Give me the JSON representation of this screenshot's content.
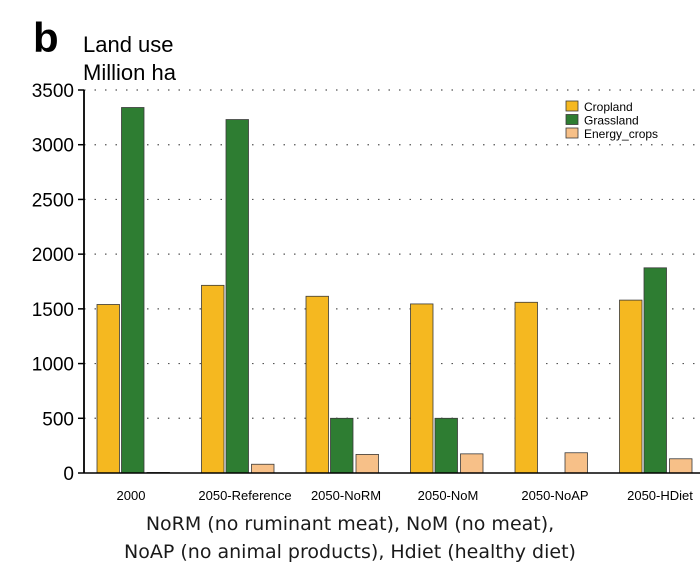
{
  "panel_letter": "b",
  "caption": {
    "line1": "NoRM (no ruminant meat), NoM (no meat),",
    "line2": "NoAP (no animal products), Hdiet (healthy diet)"
  },
  "colors": {
    "Cropland": "#f5b820",
    "Grassland": "#2e7d32",
    "Energy_crops": "#f7c088",
    "bar_stroke": "#3a3a3a",
    "grid": "#555555"
  },
  "chart_data": {
    "type": "bar",
    "title": "Land use",
    "ylabel": "Million ha",
    "xlabel": "",
    "ylim": [
      0,
      3500
    ],
    "yticks": [
      0,
      500,
      1000,
      1500,
      2000,
      2500,
      3000,
      3500
    ],
    "grid": "horizontal dotted",
    "legend_position": "top-right",
    "categories": [
      "2000",
      "2050-Reference",
      "2050-NoRM",
      "2050-NoM",
      "2050-NoAP",
      "2050-HDiet"
    ],
    "series": [
      {
        "name": "Cropland",
        "values": [
          1540,
          1715,
          1615,
          1545,
          1560,
          1580
        ]
      },
      {
        "name": "Grassland",
        "values": [
          3340,
          3230,
          500,
          500,
          0,
          1875
        ]
      },
      {
        "name": "Energy_crops",
        "values": [
          5,
          80,
          170,
          175,
          185,
          130
        ]
      }
    ]
  }
}
